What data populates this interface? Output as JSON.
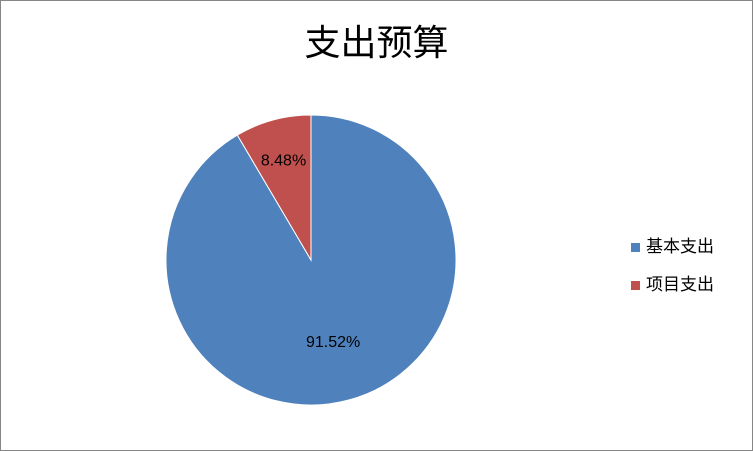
{
  "chart_data": {
    "type": "pie",
    "title": "支出预算",
    "categories": [
      "基本支出",
      "项目支出"
    ],
    "values": [
      91.52,
      8.48
    ],
    "labels": [
      "91.52%",
      "8.48%"
    ],
    "colors": [
      "#4f81bd",
      "#c0504d"
    ],
    "legend": "right"
  }
}
